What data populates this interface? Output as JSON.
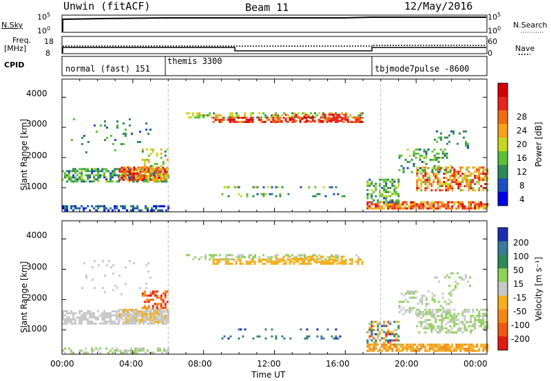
{
  "header": {
    "station": "Unwin (fitACF)",
    "beam": "Beam 11",
    "date": "12/May/2016"
  },
  "top_panels": {
    "nsky_label": "N.Sky",
    "nsky_ticks": [
      "10^5",
      "10^0"
    ],
    "nsearch_label": "N.Search",
    "freq_label": "Freq.",
    "freq_unit": "[MHz]",
    "freq_ticks": [
      "18",
      "8"
    ],
    "nave_label": "Nave",
    "nave_ticks": [
      "60",
      "0"
    ],
    "cpid_label": "CPID",
    "cpid_modes": [
      "normal (fast) 151",
      "themis 3300",
      "tbjmode7pulse -8600"
    ]
  },
  "colors": {
    "power": [
      "#0000e6",
      "#1a4fbf",
      "#2e8b57",
      "#5fbf3a",
      "#c8d81e",
      "#f7a21b",
      "#f26c13",
      "#e8261a",
      "#d40000"
    ],
    "velocity": [
      "#1c2fb0",
      "#3a7a9a",
      "#2e8b57",
      "#8fd15a",
      "#c8c8c8",
      "#f2b01e",
      "#f28a18",
      "#ee5a14",
      "#e21b10"
    ]
  },
  "chart_data": [
    {
      "type": "heatmap",
      "title": "Power",
      "ylabel": "Slant Range [km]",
      "ylim": [
        200,
        4600
      ],
      "yticks": [
        "1000",
        "2000",
        "3000",
        "4000"
      ],
      "xlabel": "Time UT",
      "xticks": [
        "00:00",
        "04:00",
        "08:00",
        "12:00",
        "16:00",
        "20:00",
        "00:00"
      ],
      "colorbar_label": "Power [dB]",
      "colorbar_ticks": [
        "4",
        "8",
        "12",
        "16",
        "20",
        "24",
        "28"
      ]
    },
    {
      "type": "heatmap",
      "title": "Velocity",
      "ylabel": "Slant Range [km]",
      "ylim": [
        200,
        4600
      ],
      "yticks": [
        "1000",
        "2000",
        "3000",
        "4000"
      ],
      "xlabel": "Time UT",
      "xticks": [
        "00:00",
        "04:00",
        "08:00",
        "12:00",
        "16:00",
        "20:00",
        "00:00"
      ],
      "colorbar_label": "Velocity [m s⁻¹]",
      "colorbar_ticks": [
        "200",
        "100",
        "50",
        "15",
        "-15",
        "-50",
        "-100",
        "-200"
      ]
    }
  ]
}
